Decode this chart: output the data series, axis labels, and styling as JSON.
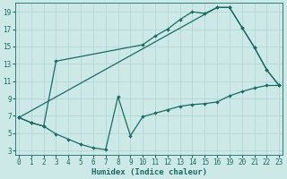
{
  "xlabel": "Humidex (Indice chaleur)",
  "bg_color": "#cce9e7",
  "grid_color": "#afd4d2",
  "line_color": "#1a6b65",
  "xlim": [
    0,
    23
  ],
  "ylim": [
    2.5,
    20
  ],
  "xtick_positions": [
    0,
    1,
    2,
    3,
    4,
    5,
    6,
    7,
    8,
    9,
    10,
    11,
    12,
    13,
    14,
    15,
    16,
    19,
    20,
    21,
    22,
    23
  ],
  "xtick_labels": [
    "0",
    "1",
    "2",
    "3",
    "4",
    "5",
    "6",
    "7",
    "8",
    "9",
    "10",
    "11",
    "12",
    "13",
    "14",
    "15",
    "16",
    "19",
    "20",
    "21",
    "22",
    "23"
  ],
  "ytick_positions": [
    3,
    5,
    7,
    9,
    11,
    13,
    15,
    17,
    19
  ],
  "ytick_labels": [
    "3",
    "5",
    "7",
    "9",
    "11",
    "13",
    "15",
    "17",
    "19"
  ],
  "line1_x": [
    0,
    1,
    2,
    3,
    4,
    5,
    6,
    7,
    8,
    9,
    10,
    11,
    12,
    13,
    14,
    15,
    16,
    19,
    20,
    21,
    22,
    23
  ],
  "line1_y": [
    6.8,
    6.2,
    5.8,
    4.9,
    4.3,
    3.7,
    3.3,
    3.1,
    9.2,
    4.7,
    6.9,
    7.3,
    7.7,
    8.1,
    8.3,
    8.4,
    8.6,
    9.3,
    9.8,
    10.2,
    10.5,
    10.5
  ],
  "line2_x": [
    0,
    1,
    2,
    3,
    10,
    11,
    12,
    13,
    14,
    15,
    16,
    19,
    20,
    21,
    22,
    23
  ],
  "line2_y": [
    6.8,
    6.2,
    5.8,
    13.3,
    15.2,
    16.2,
    17.0,
    18.1,
    19.0,
    18.8,
    19.5,
    19.5,
    17.2,
    14.9,
    12.3,
    10.5
  ],
  "line3_x": [
    0,
    16,
    19,
    20,
    21,
    22,
    23
  ],
  "line3_y": [
    6.8,
    19.5,
    19.5,
    17.2,
    14.9,
    12.3,
    10.5
  ],
  "marker_size": 2.2,
  "line_width": 0.9,
  "tick_fontsize": 5.5,
  "xlabel_fontsize": 6.5
}
